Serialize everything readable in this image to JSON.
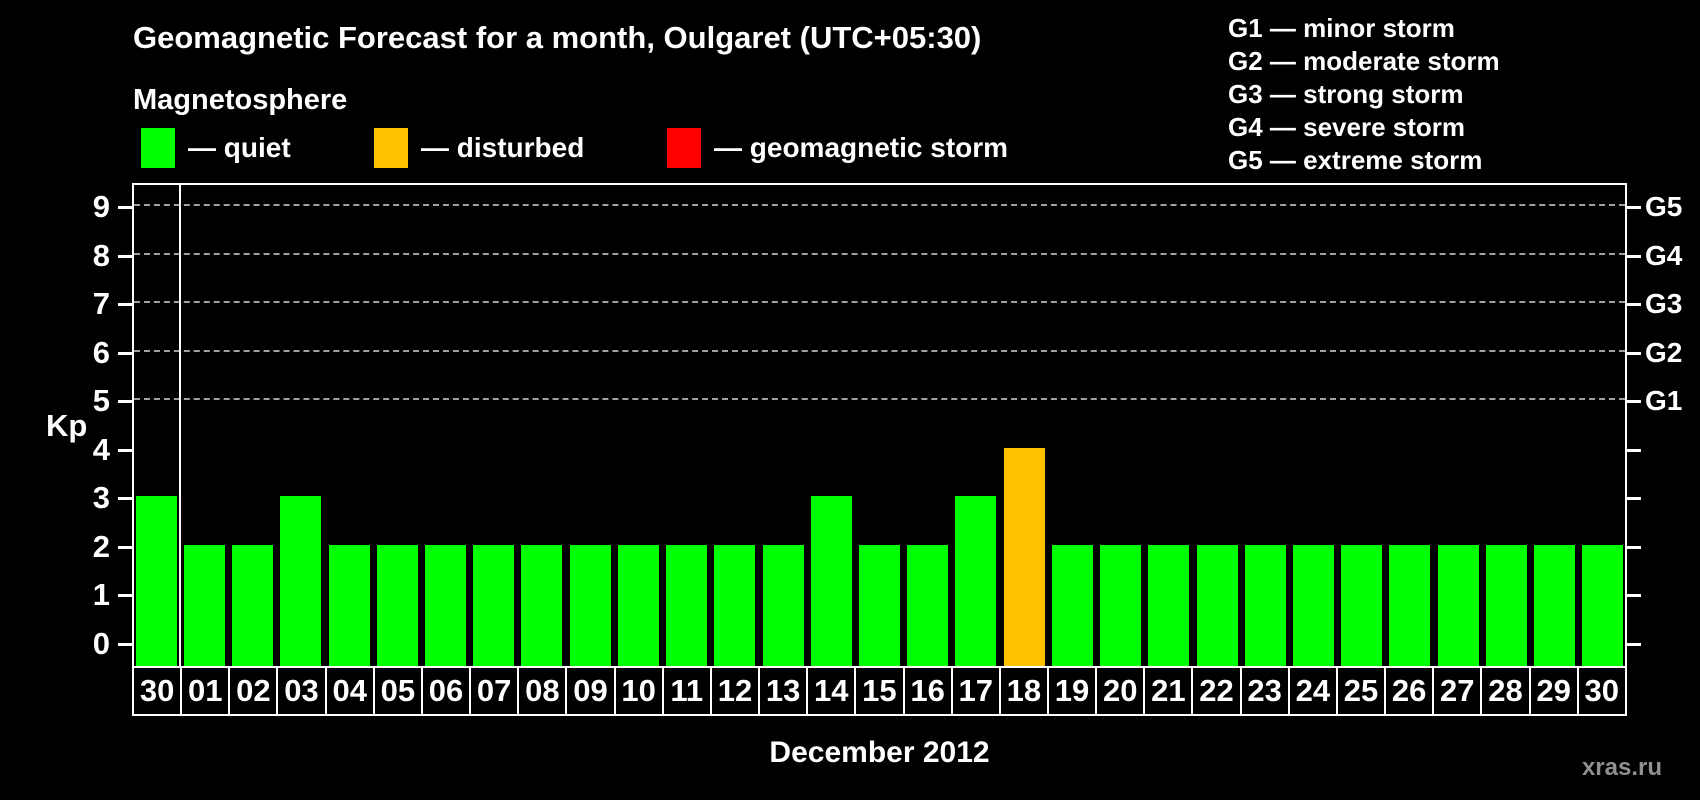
{
  "title": "Geomagnetic Forecast for a month, Oulgaret (UTC+05:30)",
  "magnetosphere_label": "Magnetosphere",
  "legend": [
    {
      "name": "quiet",
      "label": "— quiet",
      "color": "#00ff00"
    },
    {
      "name": "disturbed",
      "label": "— disturbed",
      "color": "#ffc000"
    },
    {
      "name": "storm",
      "label": "— geomagnetic storm",
      "color": "#ff0000"
    }
  ],
  "storm_scale": [
    "G1 — minor storm",
    "G2 — moderate storm",
    "G3 — strong storm",
    "G4 — severe storm",
    "G5 — extreme storm"
  ],
  "watermark": "xras.ru",
  "colors": {
    "background": "#000000",
    "axis": "#ffffff",
    "gridline": "#a0a0a0",
    "watermark": "#909090"
  },
  "chart_data": {
    "type": "bar",
    "title": "Geomagnetic Forecast for a month, Oulgaret (UTC+05:30)",
    "xlabel": "December 2012",
    "ylabel": "Kp",
    "ylim": [
      0,
      9
    ],
    "y_ticks": [
      0,
      1,
      2,
      3,
      4,
      5,
      6,
      7,
      8,
      9
    ],
    "gridlines_at_kp": [
      5,
      6,
      7,
      8,
      9
    ],
    "grid": "dashed horizontal lines at Kp 5-9 only",
    "legend_position": "top-left",
    "right_axis": [
      {
        "kp": 9,
        "label": "G5"
      },
      {
        "kp": 8,
        "label": "G4"
      },
      {
        "kp": 7,
        "label": "G3"
      },
      {
        "kp": 6,
        "label": "G2"
      },
      {
        "kp": 5,
        "label": "G1"
      }
    ],
    "categories": [
      "30",
      "01",
      "02",
      "03",
      "04",
      "05",
      "06",
      "07",
      "08",
      "09",
      "10",
      "11",
      "12",
      "13",
      "14",
      "15",
      "16",
      "17",
      "18",
      "19",
      "20",
      "21",
      "22",
      "23",
      "24",
      "25",
      "26",
      "27",
      "28",
      "29",
      "30"
    ],
    "values": [
      3,
      2,
      2,
      3,
      2,
      2,
      2,
      2,
      2,
      2,
      2,
      2,
      2,
      2,
      3,
      2,
      2,
      3,
      4,
      2,
      2,
      2,
      2,
      2,
      2,
      2,
      2,
      2,
      2,
      2,
      2
    ],
    "first_category_is_previous_month": true,
    "color_rule": {
      "quiet_max_kp": 3,
      "disturbed_max_kp": 4
    },
    "bar_colors": {
      "quiet": "#00ff00",
      "disturbed": "#ffc000",
      "storm": "#ff0000"
    }
  }
}
